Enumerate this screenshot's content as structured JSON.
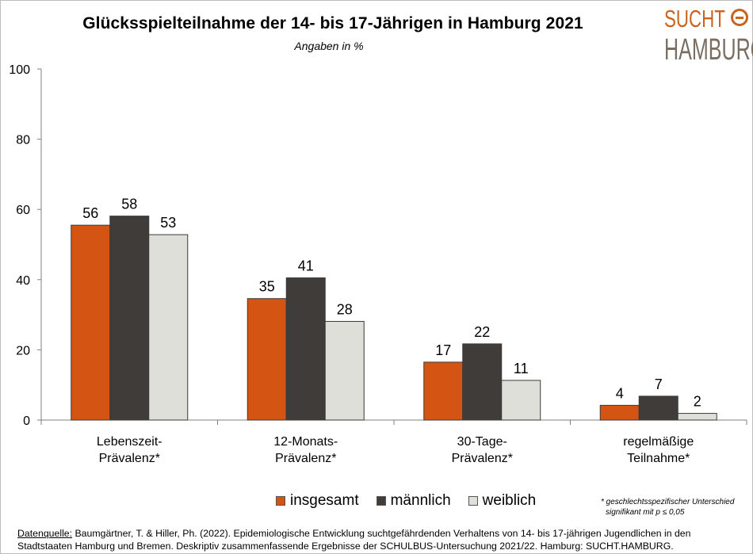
{
  "title": "Glücksspielteilnahme der 14- bis 17-Jährigen in Hamburg 2021",
  "subtitle": "Angaben in %",
  "logo": {
    "line1": "SUCHT",
    "line2": "HAMBURG"
  },
  "colors": {
    "insgesamt": "#d35413",
    "maennlich": "#3f3c39",
    "weiblich": "#dedfd8",
    "logo_orange": "#c9631e"
  },
  "chart_data": {
    "type": "bar",
    "title": "Glücksspielteilnahme der 14- bis 17-Jährigen in Hamburg 2021",
    "subtitle": "Angaben in %",
    "categories": [
      [
        "Lebenszeit-",
        "Prävalenz*"
      ],
      [
        "12-Monats-",
        "Prävalenz*"
      ],
      [
        "30-Tage-",
        "Prävalenz*"
      ],
      [
        "regelmäßige",
        "Teilnahme*"
      ]
    ],
    "series": [
      {
        "name": "insgesamt",
        "values": [
          56,
          35,
          17,
          4
        ],
        "display_values": [
          55.5,
          34.6,
          16.5,
          4.2
        ]
      },
      {
        "name": "männlich",
        "values": [
          58,
          41,
          22,
          7
        ],
        "display_values": [
          58.1,
          40.5,
          21.7,
          6.8
        ]
      },
      {
        "name": "weiblich",
        "values": [
          53,
          28,
          11,
          2
        ],
        "display_values": [
          52.8,
          28.1,
          11.3,
          1.9
        ]
      }
    ],
    "ylim": [
      0,
      100
    ],
    "yticks": [
      0,
      20,
      40,
      60,
      80,
      100
    ],
    "grid": false,
    "legend_position": "bottom"
  },
  "legend": [
    "insgesamt",
    "männlich",
    "weiblich"
  ],
  "footnote": {
    "line1": "* geschlechtsspezifischer Unterschied",
    "line2": "signifikant mit p ≤ 0,05"
  },
  "source": {
    "label": "Datenquelle:",
    "text": " Baumgärtner, T. & Hiller, Ph. (2022). Epidemiologische Entwicklung suchtgefährdenden Verhaltens von 14- bis 17-jährigen Jugendlichen in den Stadtstaaten Hamburg und Bremen. Deskriptiv zusammenfassende Ergebnisse der SCHULBUS-Untersuchung 2021/22. Hamburg: SUCHT.HAMBURG."
  }
}
